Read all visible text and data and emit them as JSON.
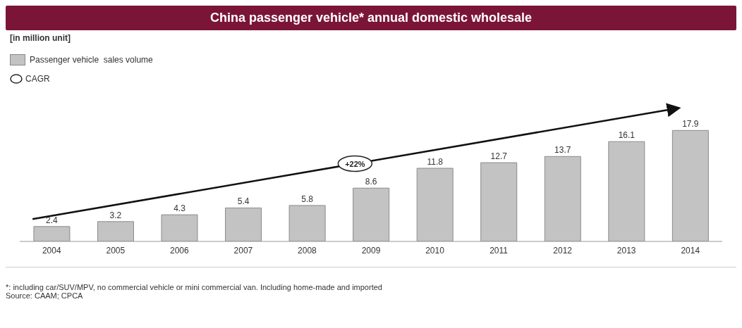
{
  "chart_data": {
    "type": "bar",
    "title": "China passenger vehicle* annual domestic wholesale",
    "categories": [
      "2004",
      "2005",
      "2006",
      "2007",
      "2008",
      "2009",
      "2010",
      "2011",
      "2012",
      "2013",
      "2014"
    ],
    "series": [
      {
        "name": "Passenger vehicle  sales volume",
        "color": "#c3c3c3",
        "values": [
          2.4,
          3.2,
          4.3,
          5.4,
          5.8,
          8.6,
          11.8,
          12.7,
          13.7,
          16.1,
          17.9
        ]
      }
    ],
    "data_labels": true,
    "legend": "top left",
    "annotations": [
      "[in million unit]",
      "CAGR",
      "+22%",
      "*: including car/SUV/MPV, no commercial vehicle or mini commercial van. Including home-made and imported",
      "Source:  CAAM; CPCA"
    ]
  }
}
